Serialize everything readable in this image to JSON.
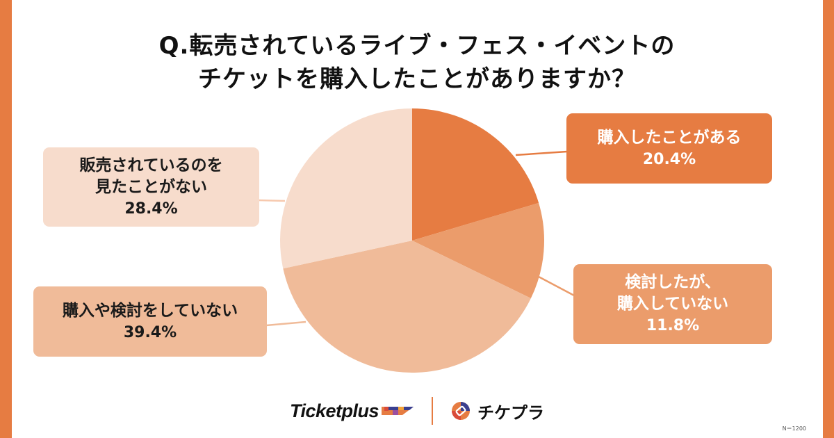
{
  "title": {
    "line1": "Q.転売されているライブ・フェス・イベントの",
    "line2": "チケットを購入したことがありますか？"
  },
  "colors": {
    "frame": "#E67C42",
    "slice_bought": "#E67C42",
    "slice_considered": "#EB9C6B",
    "slice_none": "#F0BB99",
    "slice_not_seen": "#F7DCCC"
  },
  "labels": {
    "bought": {
      "line1": "購入したことがある",
      "pct": "20.4%"
    },
    "considered": {
      "line1": "検討したが、",
      "line2": "購入していない",
      "pct": "11.8%"
    },
    "not_seen": {
      "line1": "販売されているのを",
      "line2": "見たことがない",
      "pct": "28.4%"
    },
    "none": {
      "line1": "購入や検討をしていない",
      "pct": "39.4%"
    }
  },
  "footer": {
    "logo1": "Ticketplus",
    "logo2": "チケプラ",
    "sample_size": "N＝1200"
  },
  "chart_data": {
    "type": "pie",
    "title": "Q.転売されているライブ・フェス・イベントのチケットを購入したことがありますか？",
    "categories": [
      "購入したことがある",
      "検討したが、購入していない",
      "購入や検討をしていない",
      "販売されているのを見たことがない"
    ],
    "values": [
      20.4,
      11.8,
      39.4,
      28.4
    ],
    "unit": "%",
    "start_angle": "12 o'clock, clockwise",
    "colors": [
      "#E67C42",
      "#EB9C6B",
      "#F0BB99",
      "#F7DCCC"
    ],
    "annotations": [
      "N＝1200"
    ],
    "legend": "callout labels with leader lines"
  }
}
